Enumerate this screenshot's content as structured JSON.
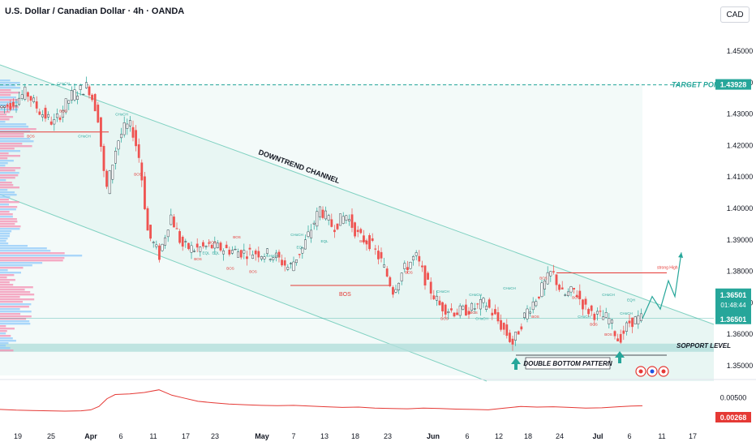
{
  "header": {
    "title": "U.S. Dollar / Canadian Dollar · 4h · OANDA",
    "currency": "CAD"
  },
  "chart_data": {
    "type": "candlestick",
    "ylim": [
      1.345,
      1.455
    ],
    "y_ticks": [
      "1.45000",
      "1.44000",
      "1.43000",
      "1.42000",
      "1.41000",
      "1.40000",
      "1.39000",
      "1.38000",
      "1.37000",
      "1.36000",
      "1.35000"
    ],
    "x_ticks": [
      "19",
      "25",
      "Apr",
      "6",
      "11",
      "17",
      "23",
      "May",
      "7",
      "13",
      "18",
      "23",
      "Jun",
      "6",
      "12",
      "18",
      "24",
      "Jul",
      "6",
      "11",
      "17"
    ],
    "price_path": [
      [
        0,
        1.432
      ],
      [
        16,
        1.433
      ],
      [
        36,
        1.437
      ],
      [
        52,
        1.431
      ],
      [
        70,
        1.427
      ],
      [
        92,
        1.436
      ],
      [
        112,
        1.439
      ],
      [
        124,
        1.43
      ],
      [
        134,
        1.405
      ],
      [
        148,
        1.421
      ],
      [
        158,
        1.426
      ],
      [
        166,
        1.426
      ],
      [
        176,
        1.415
      ],
      [
        186,
        1.392
      ],
      [
        200,
        1.385
      ],
      [
        214,
        1.398
      ],
      [
        228,
        1.388
      ],
      [
        244,
        1.387
      ],
      [
        262,
        1.388
      ],
      [
        282,
        1.387
      ],
      [
        302,
        1.386
      ],
      [
        320,
        1.386
      ],
      [
        342,
        1.385
      ],
      [
        360,
        1.381
      ],
      [
        378,
        1.388
      ],
      [
        398,
        1.4
      ],
      [
        414,
        1.394
      ],
      [
        430,
        1.398
      ],
      [
        446,
        1.391
      ],
      [
        460,
        1.389
      ],
      [
        474,
        1.383
      ],
      [
        488,
        1.374
      ],
      [
        500,
        1.38
      ],
      [
        516,
        1.385
      ],
      [
        530,
        1.376
      ],
      [
        546,
        1.369
      ],
      [
        566,
        1.367
      ],
      [
        584,
        1.368
      ],
      [
        602,
        1.37
      ],
      [
        618,
        1.364
      ],
      [
        636,
        1.357
      ],
      [
        652,
        1.367
      ],
      [
        666,
        1.372
      ],
      [
        684,
        1.38
      ],
      [
        698,
        1.372
      ],
      [
        712,
        1.374
      ],
      [
        726,
        1.368
      ],
      [
        740,
        1.366
      ],
      [
        754,
        1.365
      ],
      [
        766,
        1.358
      ],
      [
        780,
        1.364
      ],
      [
        792,
        1.365
      ]
    ],
    "projection": [
      [
        792,
        1.365
      ],
      [
        804,
        1.372
      ],
      [
        814,
        1.368
      ],
      [
        824,
        1.377
      ],
      [
        832,
        1.372
      ],
      [
        840,
        1.386
      ]
    ],
    "levels": {
      "target_point": 1.43928,
      "last_price": 1.36501,
      "strong_high": 1.3795,
      "bos_level": 1.3755,
      "support_level": 1.3565
    },
    "annotations": {
      "channel_label": "DOWNTREND CHANNEL",
      "target_label": "TARGET POINT",
      "support_label": "SOPPORT LEVEL",
      "pattern_label": "DOUBLE BOTTOM PATTERN",
      "strong_high_label": "strong High",
      "bos_center_label": "BOS",
      "small_labels": [
        {
          "text": "CHoCH",
          "x": 78,
          "y": 1.4393
        },
        {
          "text": "BOS",
          "x": 78,
          "y": 1.4305
        },
        {
          "text": "CHoCH",
          "x": 104,
          "y": 1.4225
        },
        {
          "text": "BOS",
          "x": 38,
          "y": 1.4225
        },
        {
          "text": "CHoCH",
          "x": 150,
          "y": 1.4295
        },
        {
          "text": "BOS",
          "x": 170,
          "y": 1.4105
        },
        {
          "text": "BOS",
          "x": 262,
          "y": 1.3888
        },
        {
          "text": "BOS",
          "x": 292,
          "y": 1.3905
        },
        {
          "text": "EQL",
          "x": 254,
          "y": 1.3855
        },
        {
          "text": "EQL",
          "x": 266,
          "y": 1.3855
        },
        {
          "text": "BOS",
          "x": 244,
          "y": 1.3835
        },
        {
          "text": "BOS",
          "x": 284,
          "y": 1.3805
        },
        {
          "text": "BOS",
          "x": 312,
          "y": 1.3795
        },
        {
          "text": "CHoCH",
          "x": 336,
          "y": 1.3845
        },
        {
          "text": "CHoCH",
          "x": 366,
          "y": 1.3912
        },
        {
          "text": "EQL",
          "x": 400,
          "y": 1.3892
        },
        {
          "text": "EQL",
          "x": 370,
          "y": 1.3872
        },
        {
          "text": "BOS",
          "x": 448,
          "y": 1.3892
        },
        {
          "text": "BOS",
          "x": 504,
          "y": 1.3792
        },
        {
          "text": "CHoCH",
          "x": 546,
          "y": 1.3732
        },
        {
          "text": "BOS",
          "x": 548,
          "y": 1.3645
        },
        {
          "text": "CHoCH",
          "x": 586,
          "y": 1.3722
        },
        {
          "text": "BOS",
          "x": 584,
          "y": 1.3665
        },
        {
          "text": "CHoCH",
          "x": 628,
          "y": 1.3742
        },
        {
          "text": "CHoCH",
          "x": 594,
          "y": 1.3645
        },
        {
          "text": "BOS",
          "x": 660,
          "y": 1.3652
        },
        {
          "text": "BOS",
          "x": 670,
          "y": 1.3775
        },
        {
          "text": "CHoCH",
          "x": 720,
          "y": 1.3652
        },
        {
          "text": "CHoCH",
          "x": 750,
          "y": 1.3722
        },
        {
          "text": "BOS",
          "x": 750,
          "y": 1.3595
        },
        {
          "text": "EQH",
          "x": 778,
          "y": 1.3705
        },
        {
          "text": "CHoCH",
          "x": 772,
          "y": 1.3662
        },
        {
          "text": "BOS",
          "x": 732,
          "y": 1.3628
        },
        {
          "text": "BOS",
          "x": 710,
          "y": 1.3712
        }
      ]
    },
    "indicator": {
      "ylim": [
        -0.002,
        0.009
      ],
      "ticks": [
        "0.00500"
      ],
      "last_value": "0.00268",
      "path": [
        [
          0,
          0.0016
        ],
        [
          20,
          0.0014
        ],
        [
          40,
          0.0013
        ],
        [
          60,
          0.0012
        ],
        [
          80,
          0.0011
        ],
        [
          100,
          0.0012
        ],
        [
          112,
          0.0015
        ],
        [
          122,
          0.0025
        ],
        [
          132,
          0.0048
        ],
        [
          142,
          0.006
        ],
        [
          160,
          0.0062
        ],
        [
          178,
          0.0066
        ],
        [
          196,
          0.0074
        ],
        [
          212,
          0.0058
        ],
        [
          226,
          0.005
        ],
        [
          244,
          0.004
        ],
        [
          262,
          0.0036
        ],
        [
          282,
          0.0032
        ],
        [
          302,
          0.003
        ],
        [
          322,
          0.0028
        ],
        [
          342,
          0.0027
        ],
        [
          362,
          0.0028
        ],
        [
          382,
          0.0026
        ],
        [
          402,
          0.0024
        ],
        [
          422,
          0.0022
        ],
        [
          442,
          0.0023
        ],
        [
          462,
          0.002
        ],
        [
          482,
          0.0019
        ],
        [
          502,
          0.0018
        ],
        [
          522,
          0.002
        ],
        [
          542,
          0.0019
        ],
        [
          562,
          0.0017
        ],
        [
          582,
          0.0016
        ],
        [
          602,
          0.0015
        ],
        [
          622,
          0.002
        ],
        [
          642,
          0.0025
        ],
        [
          662,
          0.0023
        ],
        [
          682,
          0.0024
        ],
        [
          702,
          0.0022
        ],
        [
          722,
          0.002
        ],
        [
          742,
          0.0021
        ],
        [
          762,
          0.0024
        ],
        [
          778,
          0.0026
        ],
        [
          792,
          0.00268
        ]
      ]
    },
    "price_labels": {
      "target": "1.43928",
      "current": "1.36501",
      "countdown": "01:48:44",
      "current2": "1.36501"
    },
    "colors": {
      "up": "#26a69a",
      "down": "#ef5350",
      "channel_fill": "#e4f4f1",
      "channel_line": "#7fd1c1",
      "target_line": "#26a69a",
      "support_fill": "#b2dfdb",
      "indicator_line": "#e53935",
      "bos_red": "#e53935"
    }
  }
}
